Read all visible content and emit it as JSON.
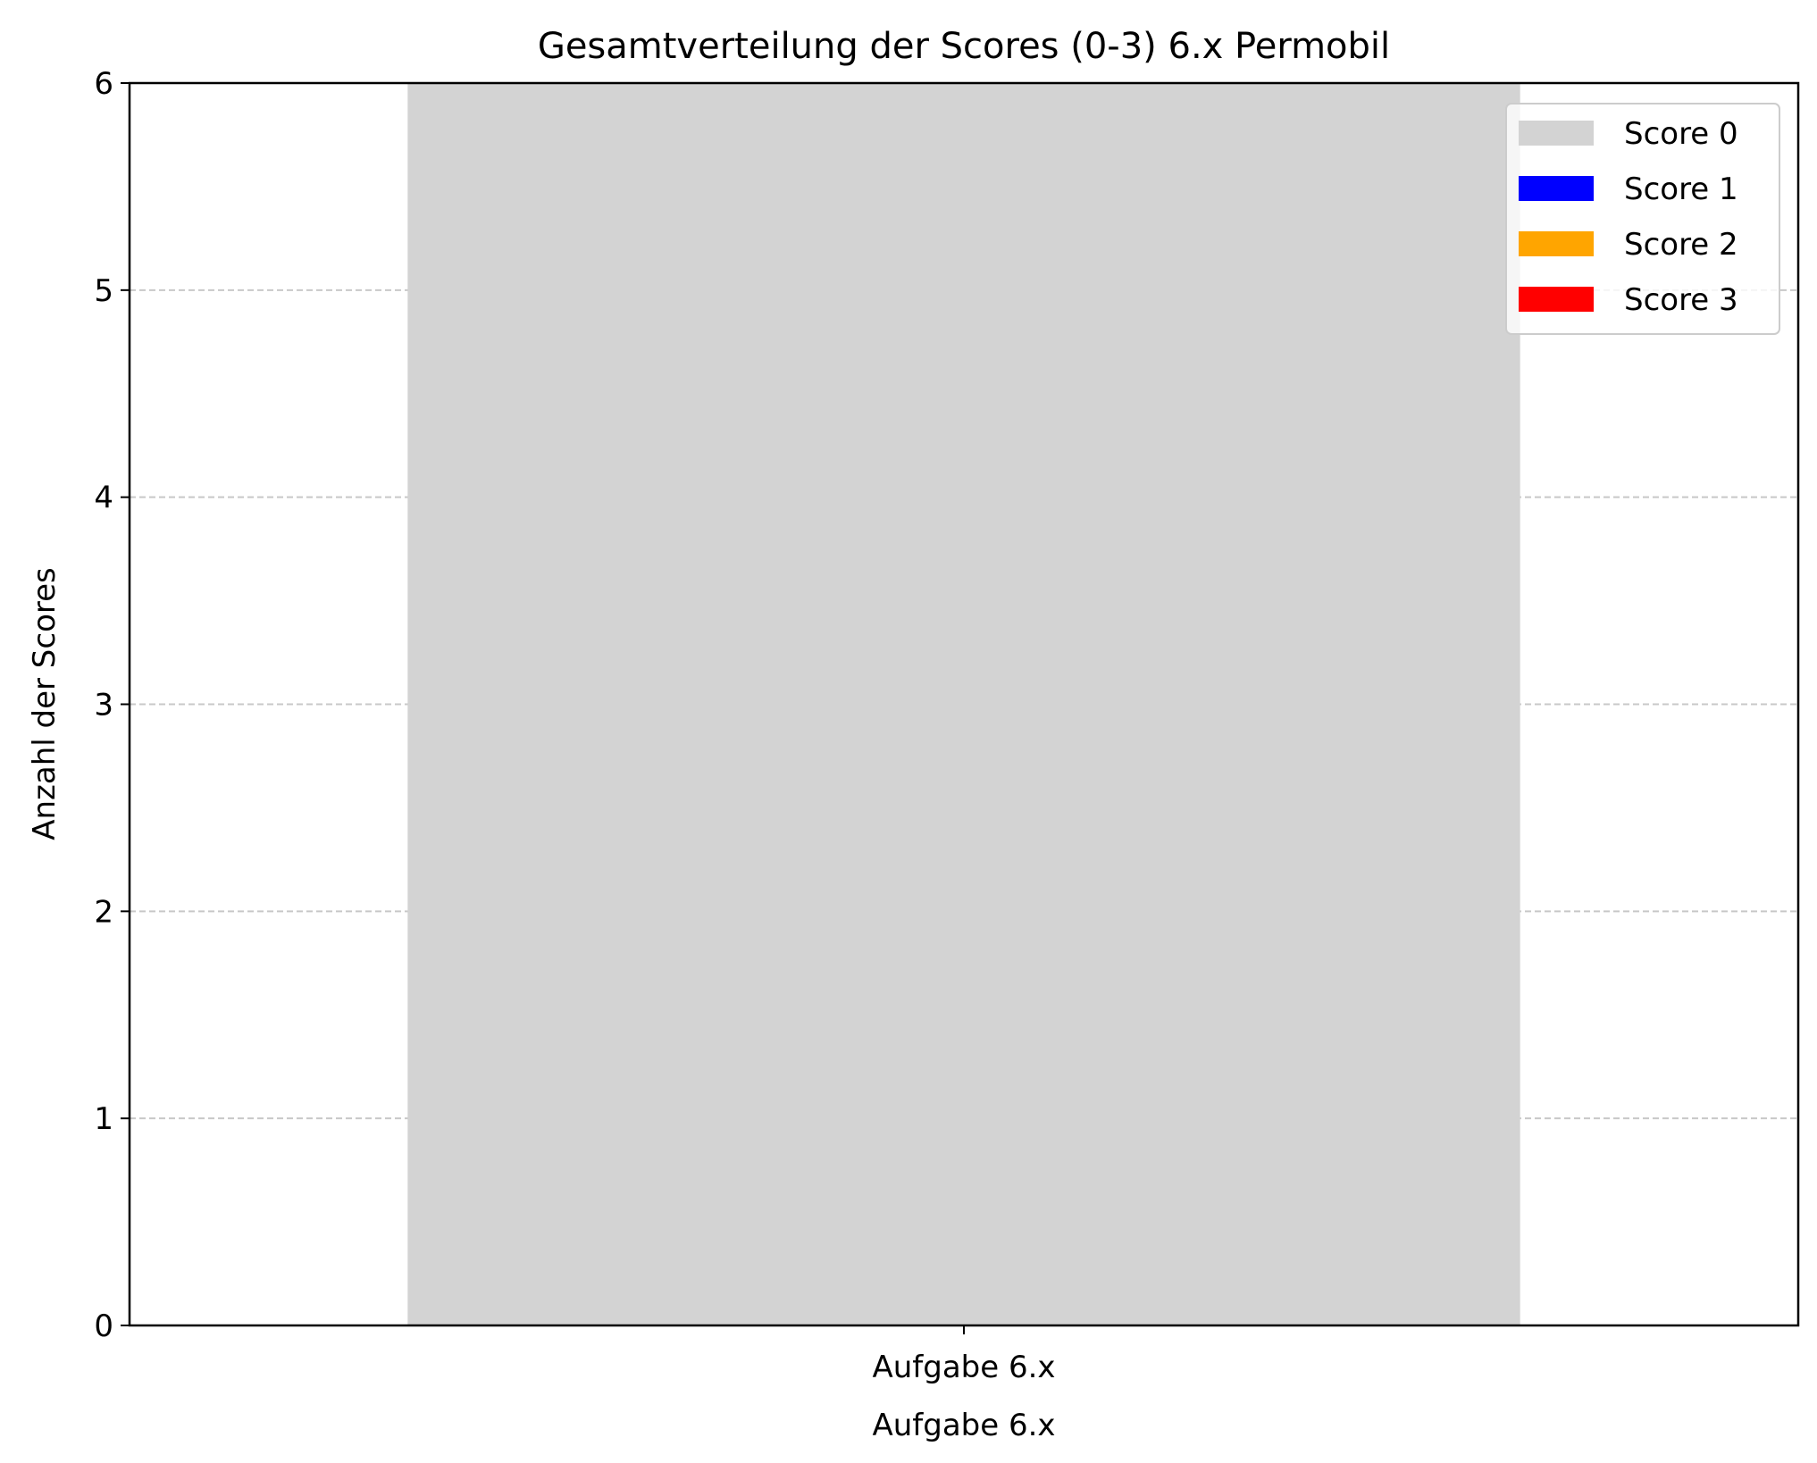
{
  "chart_data": {
    "type": "bar",
    "stacked": true,
    "title": "Gesamtverteilung der Scores (0-3) 6.x Permobil",
    "xlabel": "Aufgabe 6.x",
    "ylabel": "Anzahl der Scores",
    "categories": [
      "Aufgabe 6.x"
    ],
    "ylim": [
      0,
      6
    ],
    "yticks": [
      0,
      1,
      2,
      3,
      4,
      5,
      6
    ],
    "grid": "y-dashed",
    "legend_position": "top-right",
    "series": [
      {
        "name": "Score 0",
        "color": "#d3d3d3",
        "values": [
          6
        ]
      },
      {
        "name": "Score 1",
        "color": "#0000ff",
        "values": [
          0
        ]
      },
      {
        "name": "Score 2",
        "color": "#ffa500",
        "values": [
          0
        ]
      },
      {
        "name": "Score 3",
        "color": "#ff0000",
        "values": [
          0
        ]
      }
    ]
  }
}
